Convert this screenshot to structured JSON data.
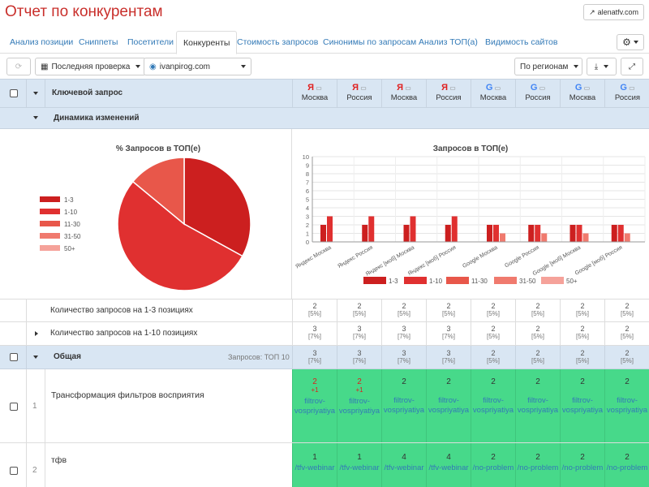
{
  "header": {
    "title": "Отчет по конкурентам",
    "site_button": "alenatfv.com"
  },
  "tabs": [
    "Анализ позиции",
    "Сниппеты",
    "Посетители",
    "Конкуренты",
    "Стоимость запросов",
    "Синонимы по запросам",
    "Анализ ТОП(а)",
    "Видимость сайтов"
  ],
  "active_tab": "Конкуренты",
  "toolbar": {
    "last_check": "Последняя проверка",
    "domain": "ivanpirog.com",
    "by_regions": "По регионам"
  },
  "table": {
    "keyword_header": "Ключевой запрос",
    "columns": [
      {
        "engine": "yandex",
        "engine_glyph": "Я",
        "region": "Москва"
      },
      {
        "engine": "yandex",
        "engine_glyph": "Я",
        "region": "Россия"
      },
      {
        "engine": "yandex",
        "engine_glyph": "Я",
        "region": "Москва"
      },
      {
        "engine": "yandex",
        "engine_glyph": "Я",
        "region": "Россия"
      },
      {
        "engine": "google",
        "engine_glyph": "G",
        "region": "Москва"
      },
      {
        "engine": "google",
        "engine_glyph": "G",
        "region": "Россия"
      },
      {
        "engine": "google",
        "engine_glyph": "G",
        "region": "Москва"
      },
      {
        "engine": "google",
        "engine_glyph": "G",
        "region": "Россия"
      }
    ],
    "dynamics_label": "Динамика изменений",
    "stat_rows": [
      {
        "label": "Количество запросов на 1-3 позициях",
        "values": [
          "2",
          "2",
          "2",
          "2",
          "2",
          "2",
          "2",
          "2"
        ],
        "percents": [
          "[5%]",
          "[5%]",
          "[5%]",
          "[5%]",
          "[5%]",
          "[5%]",
          "[5%]",
          "[5%]"
        ]
      },
      {
        "label": "Количество запросов на 1-10 позициях",
        "values": [
          "3",
          "3",
          "3",
          "3",
          "2",
          "2",
          "2",
          "2"
        ],
        "percents": [
          "[7%]",
          "[7%]",
          "[7%]",
          "[7%]",
          "[5%]",
          "[5%]",
          "[5%]",
          "[5%]"
        ]
      }
    ],
    "group": {
      "label": "Общая",
      "queries_count": "Запросов: ТОП 10",
      "values": [
        "3",
        "3",
        "3",
        "3",
        "2",
        "2",
        "2",
        "2"
      ],
      "percents": [
        "[7%]",
        "[7%]",
        "[7%]",
        "[7%]",
        "[5%]",
        "[5%]",
        "[5%]",
        "[5%]"
      ]
    },
    "query_rows": [
      {
        "num": "1",
        "query": "Трансформация фильтров восприятия",
        "cells": [
          {
            "pos": "2",
            "delta": "+1",
            "url": "filtrov-vospriyatiya",
            "red": true
          },
          {
            "pos": "2",
            "delta": "+1",
            "url": "filtrov-vospriyatiya",
            "red": true
          },
          {
            "pos": "2",
            "delta": "",
            "url": "filtrov-vospriyatiya",
            "red": false
          },
          {
            "pos": "2",
            "delta": "",
            "url": "filtrov-vospriyatiya",
            "red": false
          },
          {
            "pos": "2",
            "delta": "",
            "url": "filtrov-vospriyatiya",
            "red": false
          },
          {
            "pos": "2",
            "delta": "",
            "url": "filtrov-vospriyatiya",
            "red": false
          },
          {
            "pos": "2",
            "delta": "",
            "url": "filtrov-vospriyatiya",
            "red": false
          },
          {
            "pos": "2",
            "delta": "",
            "url": "filtrov-vospriyatiya",
            "red": false
          }
        ]
      },
      {
        "num": "2",
        "query": "тфв",
        "cells": [
          {
            "pos": "1",
            "delta": "",
            "url": "/tfv-webinar",
            "red": false
          },
          {
            "pos": "1",
            "delta": "",
            "url": "/tfv-webinar",
            "red": false
          },
          {
            "pos": "4",
            "delta": "",
            "url": "/tfv-webinar",
            "red": false
          },
          {
            "pos": "4",
            "delta": "",
            "url": "/tfv-webinar",
            "red": false
          },
          {
            "pos": "2",
            "delta": "",
            "url": "/no-problem",
            "red": false
          },
          {
            "pos": "2",
            "delta": "",
            "url": "/no-problem",
            "red": false
          },
          {
            "pos": "2",
            "delta": "",
            "url": "/no-problem",
            "red": false
          },
          {
            "pos": "2",
            "delta": "",
            "url": "/no-problem",
            "red": false
          }
        ]
      }
    ]
  },
  "chart_data": [
    {
      "type": "pie",
      "title": "% Запросов в ТОП(е)",
      "categories": [
        "1-3",
        "1-10",
        "11-30",
        "31-50",
        "50+"
      ],
      "values": [
        33,
        53,
        14,
        0,
        0
      ],
      "colors": [
        "#cc1f1f",
        "#e03030",
        "#e8574a",
        "#f07a6e",
        "#f5a29a"
      ],
      "legend": "left"
    },
    {
      "type": "bar",
      "title": "Запросов в ТОП(е)",
      "categories": [
        "Яндекс Москва",
        "Яндекс Россия",
        "Яндекс [моб] Москва",
        "Яндекс [моб] Россия",
        "Google Москва",
        "Google Россия",
        "Google [моб] Москва",
        "Google [моб] Россия"
      ],
      "ylim": [
        0,
        10
      ],
      "yticks": [
        "0",
        "1",
        "2",
        "3",
        "4",
        "5",
        "6",
        "7",
        "8",
        "9",
        "10"
      ],
      "series": [
        {
          "name": "1-3",
          "values": [
            2,
            2,
            2,
            2,
            2,
            2,
            2,
            2
          ],
          "color": "#cc1f1f"
        },
        {
          "name": "1-10",
          "values": [
            3,
            3,
            3,
            3,
            2,
            2,
            2,
            2
          ],
          "color": "#e03030"
        },
        {
          "name": "11-30",
          "values": [
            0,
            0,
            0,
            0,
            0,
            0,
            0,
            0
          ],
          "color": "#e8574a"
        },
        {
          "name": "31-50",
          "values": [
            0,
            0,
            0,
            0,
            1,
            1,
            1,
            1
          ],
          "color": "#f07a6e"
        },
        {
          "name": "50+",
          "values": [
            0,
            0,
            0,
            0,
            0,
            0,
            0,
            0
          ],
          "color": "#f5a29a"
        }
      ],
      "grid": true,
      "legend": "bottom"
    }
  ]
}
